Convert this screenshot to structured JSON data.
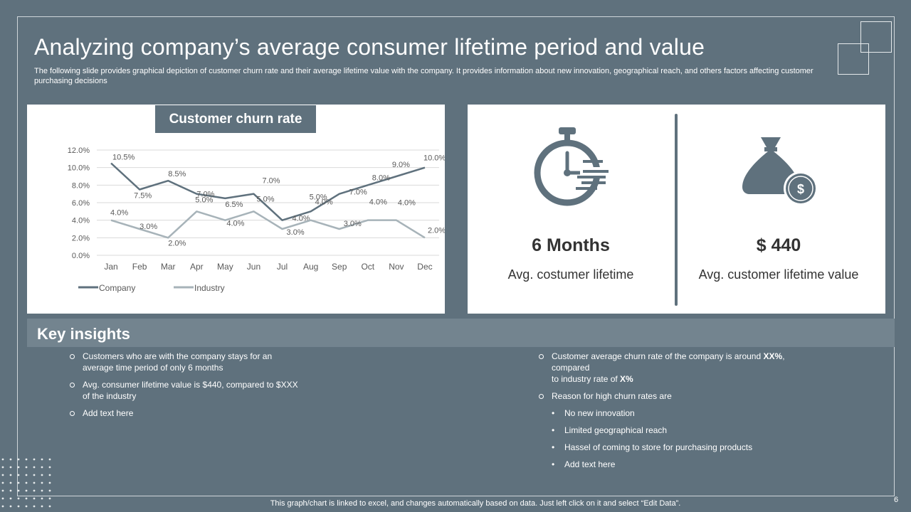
{
  "title": "Analyzing company’s average consumer lifetime period and value",
  "subtitle": "The following slide provides graphical depiction of customer churn rate and their average lifetime value with the company. It provides information about  new innovation, geographical reach, and others factors affecting customer  purchasing decisions",
  "chart_data": {
    "type": "line",
    "title": "Customer churn rate",
    "categories": [
      "Jan",
      "Feb",
      "Mar",
      "Apr",
      "May",
      "Jun",
      "Jul",
      "Aug",
      "Sep",
      "Oct",
      "Nov",
      "Dec"
    ],
    "y_ticks": [
      "0.0%",
      "2.0%",
      "4.0%",
      "6.0%",
      "8.0%",
      "10.0%",
      "12.0%"
    ],
    "ylim": [
      0,
      12
    ],
    "series": [
      {
        "name": "Company",
        "color": "#5f717d",
        "values": [
          10.5,
          7.5,
          8.5,
          7.0,
          6.5,
          7.0,
          4.0,
          5.0,
          7.0,
          8.0,
          9.0,
          10.0
        ],
        "labels": [
          "10.5%",
          "7.5%",
          "8.5%",
          "7.0%",
          "6.5%",
          "7.0%",
          "4.0%",
          "5.0%",
          "7.0%",
          "8.0%",
          "9.0%",
          "10.0%"
        ]
      },
      {
        "name": "Industry",
        "color": "#a7b3b9",
        "values": [
          4.0,
          3.0,
          2.0,
          5.0,
          4.0,
          5.0,
          3.0,
          4.0,
          3.0,
          4.0,
          4.0,
          2.0
        ],
        "labels": [
          "4.0%",
          "3.0%",
          "2.0%",
          "5.0%",
          "4.0%",
          "5.0%",
          "3.0%",
          "4.0%",
          "3.0%",
          "4.0%",
          "4.0%",
          "2.0%"
        ]
      }
    ],
    "legend": "bottom-left",
    "grid": true
  },
  "stats": {
    "lifetime": {
      "value": "6 Months",
      "label": "Avg. costumer lifetime",
      "icon": "stopwatch-icon"
    },
    "value": {
      "value": "$ 440",
      "label": "Avg. customer lifetime value",
      "icon": "money-bag-icon",
      "bag_symbol": "$"
    }
  },
  "insights": {
    "title": "Key insights",
    "left": [
      "Customers who are with the company stays for an average  time period  of only 6 months",
      "Avg.  consumer  lifetime  value  is $440,  compared  to $XXX  of the industry",
      "Add text here"
    ],
    "right": {
      "item1_pre": "Customer average  churn rate of the company is around ",
      "item1_bold1": "XX%",
      "item1_mid1": ", compared",
      "item1_mid2": "to industry rate of ",
      "item1_bold2": "X%",
      "item2": "Reason for high churn rates are",
      "bullets": [
        "No new innovation",
        "Limited geographical  reach",
        "Hassel of coming to store for purchasing products",
        "Add text here"
      ]
    }
  },
  "footer": "This graph/chart is linked to excel,  and changes automatically based on data. Just left click on it and select “Edit Data”.",
  "page_number": "6"
}
